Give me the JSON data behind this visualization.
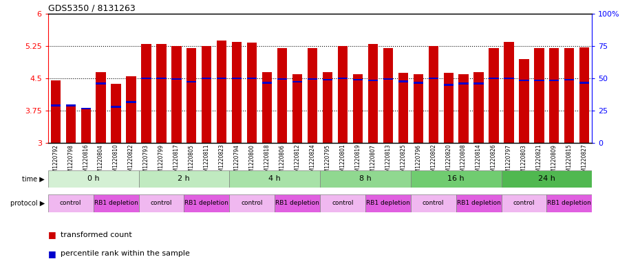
{
  "title": "GDS5350 / 8131263",
  "samples": [
    "GSM1220792",
    "GSM1220798",
    "GSM1220816",
    "GSM1220804",
    "GSM1220810",
    "GSM1220822",
    "GSM1220793",
    "GSM1220799",
    "GSM1220817",
    "GSM1220805",
    "GSM1220811",
    "GSM1220823",
    "GSM1220794",
    "GSM1220800",
    "GSM1220818",
    "GSM1220806",
    "GSM1220812",
    "GSM1220824",
    "GSM1220795",
    "GSM1220801",
    "GSM1220819",
    "GSM1220807",
    "GSM1220813",
    "GSM1220825",
    "GSM1220796",
    "GSM1220802",
    "GSM1220820",
    "GSM1220808",
    "GSM1220814",
    "GSM1220826",
    "GSM1220797",
    "GSM1220803",
    "GSM1220821",
    "GSM1220809",
    "GSM1220815",
    "GSM1220827"
  ],
  "red_values": [
    4.45,
    3.85,
    3.8,
    4.65,
    4.38,
    4.55,
    5.3,
    5.3,
    5.25,
    5.2,
    5.25,
    5.37,
    5.35,
    5.32,
    4.65,
    5.2,
    4.6,
    5.2,
    4.65,
    5.25,
    4.6,
    5.3,
    5.2,
    4.62,
    4.6,
    5.25,
    4.63,
    4.6,
    4.65,
    5.2,
    5.35,
    4.95,
    5.2,
    5.2,
    5.2,
    5.22
  ],
  "blue_values": [
    3.87,
    3.87,
    3.8,
    4.38,
    3.84,
    3.95,
    4.5,
    4.5,
    4.48,
    4.42,
    4.5,
    4.5,
    4.5,
    4.5,
    4.4,
    4.48,
    4.42,
    4.48,
    4.47,
    4.5,
    4.47,
    4.45,
    4.48,
    4.43,
    4.4,
    4.5,
    4.35,
    4.38,
    4.38,
    4.5,
    4.5,
    4.45,
    4.45,
    4.45,
    4.47,
    4.4
  ],
  "time_groups": [
    {
      "label": "0 h",
      "start": 0,
      "end": 6,
      "color": "#d4f0d4"
    },
    {
      "label": "2 h",
      "start": 6,
      "end": 12,
      "color": "#c0eac0"
    },
    {
      "label": "4 h",
      "start": 12,
      "end": 18,
      "color": "#a8e2a8"
    },
    {
      "label": "8 h",
      "start": 18,
      "end": 24,
      "color": "#90d890"
    },
    {
      "label": "16 h",
      "start": 24,
      "end": 30,
      "color": "#70cc70"
    },
    {
      "label": "24 h",
      "start": 30,
      "end": 36,
      "color": "#50b850"
    }
  ],
  "protocol_groups": [
    {
      "label": "control",
      "start": 0,
      "end": 3
    },
    {
      "label": "RB1 depletion",
      "start": 3,
      "end": 6
    },
    {
      "label": "control",
      "start": 6,
      "end": 9
    },
    {
      "label": "RB1 depletion",
      "start": 9,
      "end": 12
    },
    {
      "label": "control",
      "start": 12,
      "end": 15
    },
    {
      "label": "RB1 depletion",
      "start": 15,
      "end": 18
    },
    {
      "label": "control",
      "start": 18,
      "end": 21
    },
    {
      "label": "RB1 depletion",
      "start": 21,
      "end": 24
    },
    {
      "label": "control",
      "start": 24,
      "end": 27
    },
    {
      "label": "RB1 depletion",
      "start": 27,
      "end": 30
    },
    {
      "label": "control",
      "start": 30,
      "end": 33
    },
    {
      "label": "RB1 depletion",
      "start": 33,
      "end": 36
    }
  ],
  "ymin": 3.0,
  "ymax": 6.0,
  "yticks": [
    3.0,
    3.75,
    4.5,
    5.25,
    6.0
  ],
  "ytick_labels": [
    "3",
    "3.75",
    "4.5",
    "5.25",
    "6"
  ],
  "right_yticks": [
    0,
    25,
    50,
    75,
    100
  ],
  "right_ytick_labels": [
    "0",
    "25",
    "50",
    "75",
    "100%"
  ],
  "bar_color": "#cc0000",
  "blue_color": "#0000cc",
  "bar_width": 0.65,
  "control_color": "#f0b8f0",
  "depletion_color": "#e060e0"
}
